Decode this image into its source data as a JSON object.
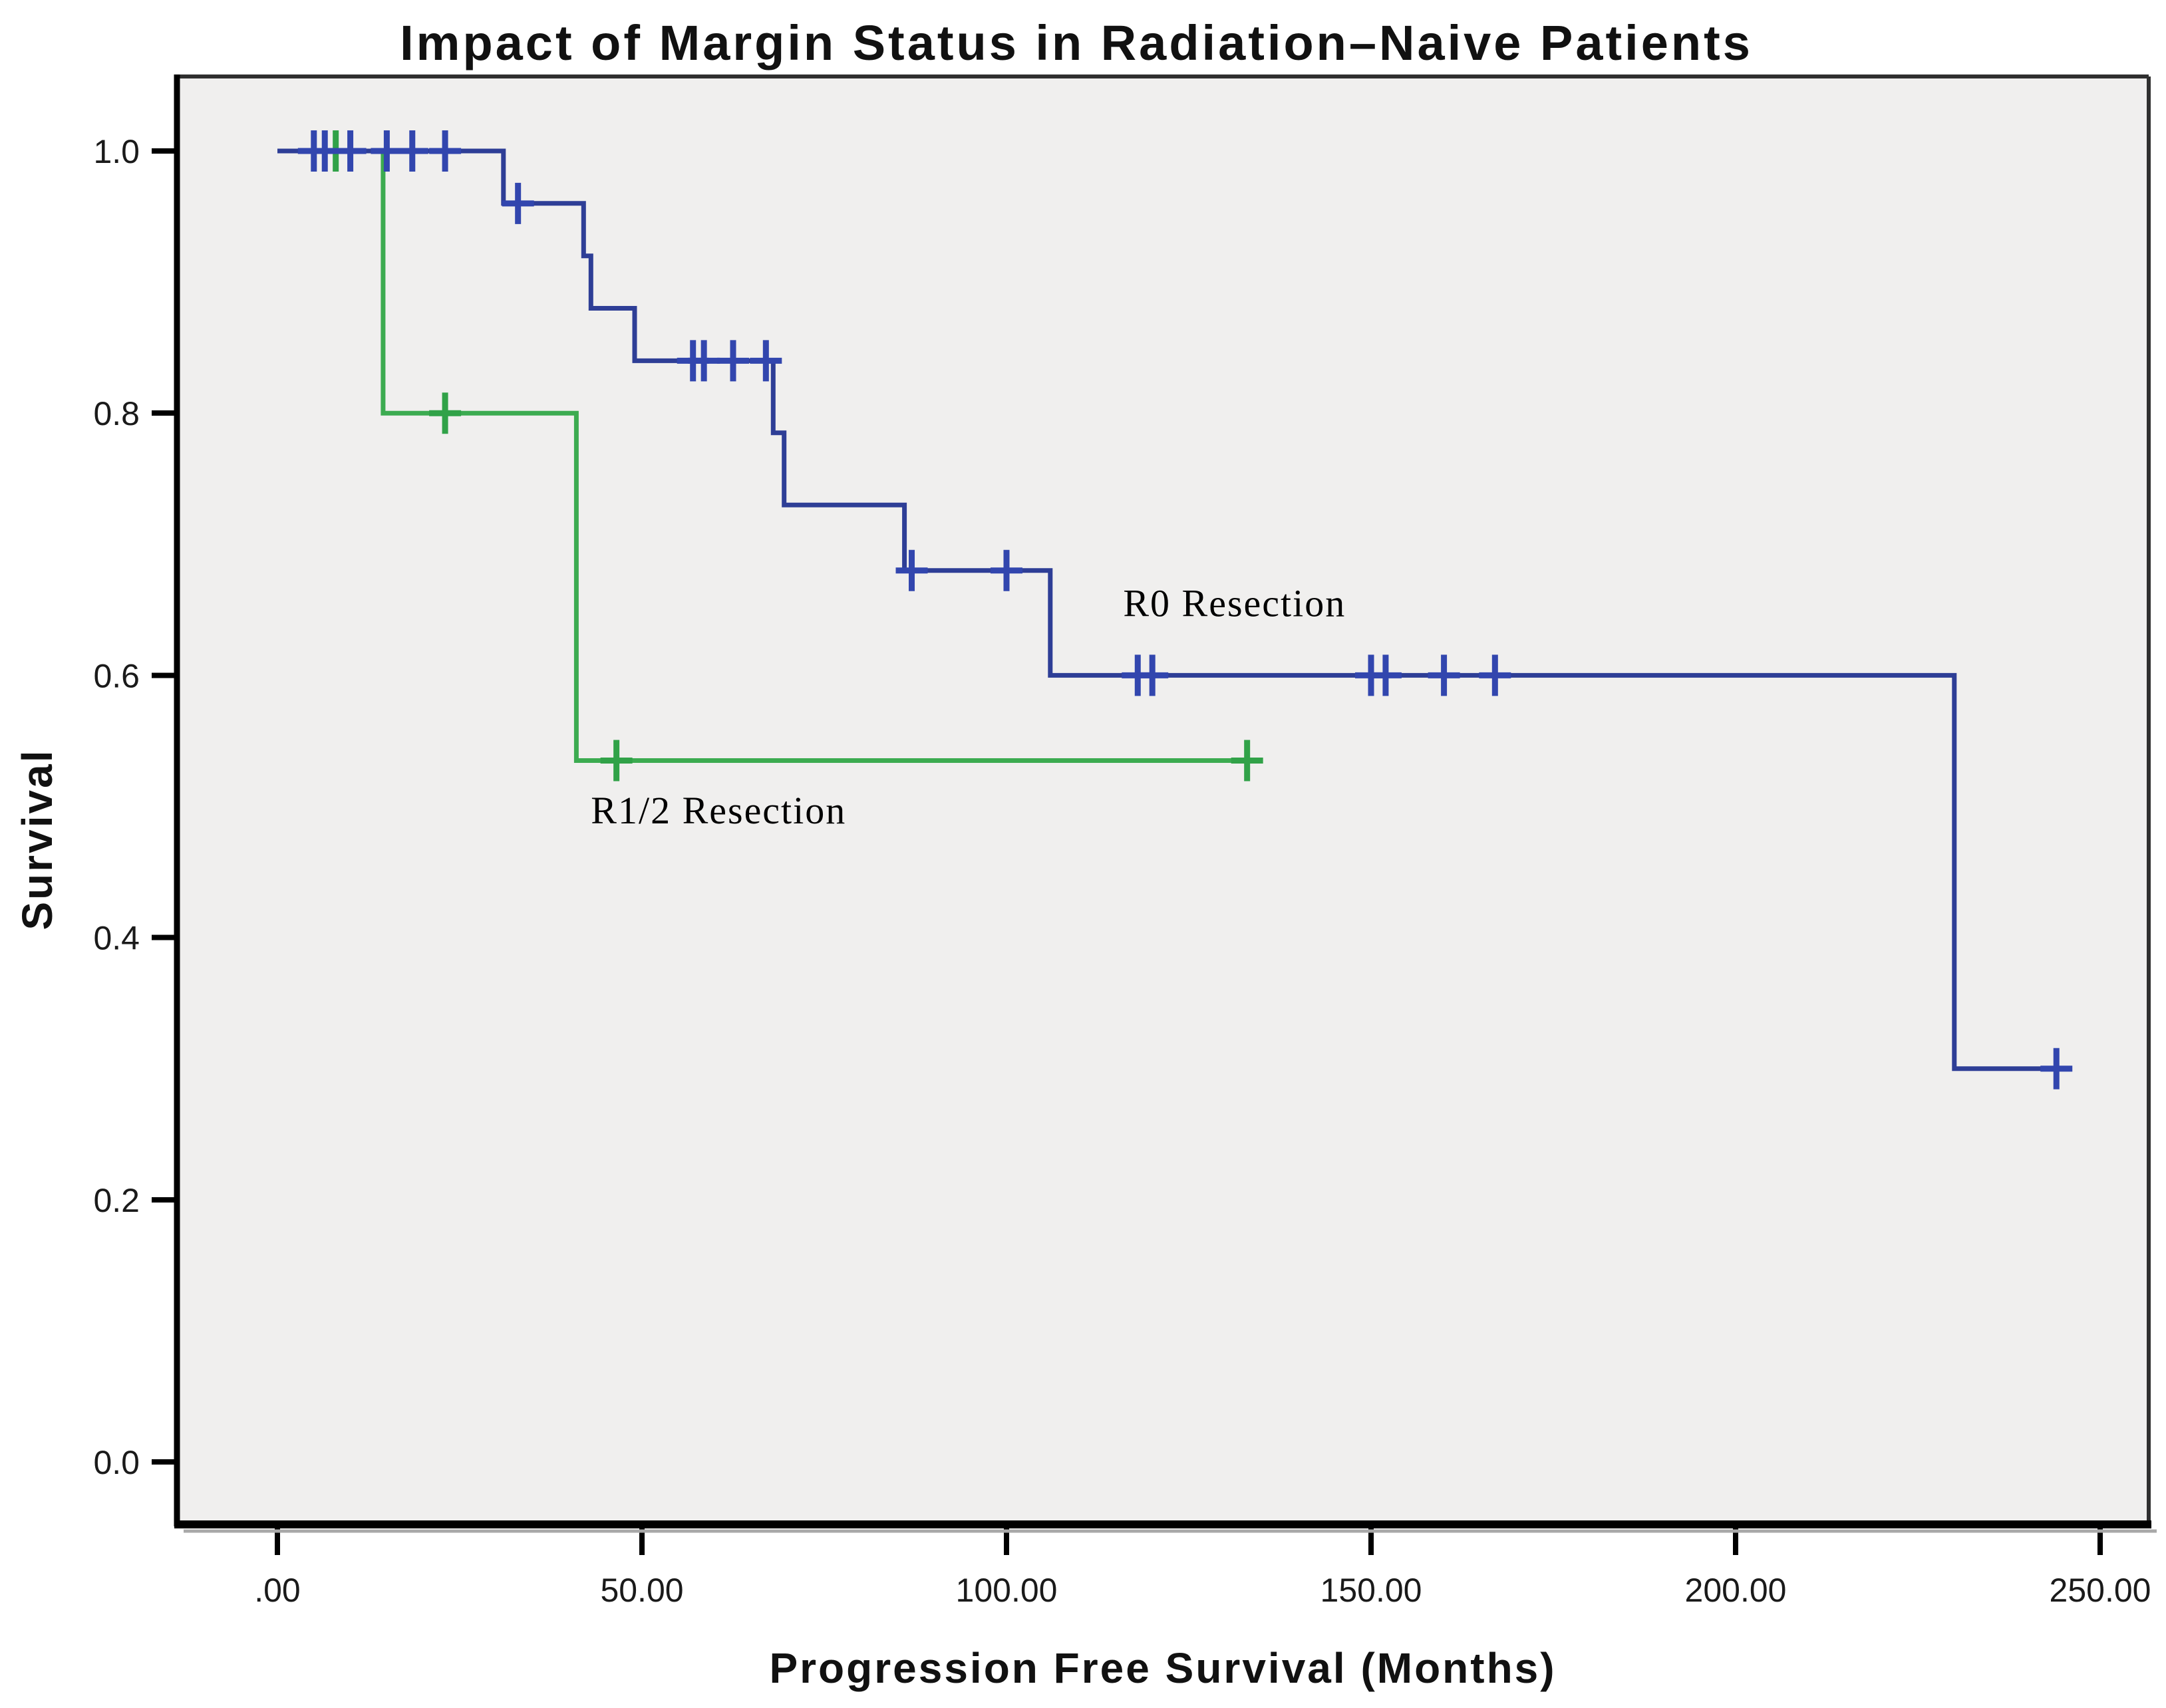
{
  "title": "Impact of Margin Status in Radiation–Naive Patients",
  "chart_data": {
    "type": "line",
    "subtype": "kaplan_meier_step_survival",
    "title": "Impact of Margin Status in Radiation–Naive Patients",
    "xlabel": "Progression Free Survival (Months)",
    "ylabel": "Survival",
    "x_ticks": {
      "values": [
        0,
        50,
        100,
        150,
        200,
        250
      ],
      "labels": [
        ".00",
        "50.00",
        "100.00",
        "150.00",
        "200.00",
        "250.00"
      ]
    },
    "y_ticks": {
      "values": [
        1.0,
        0.8,
        0.6,
        0.4,
        0.2,
        0.0
      ],
      "labels": [
        "1.0",
        "0.8",
        "0.6",
        "0.4",
        "0.2",
        "0.0"
      ]
    },
    "xlim": [
      -13.8,
      256.7
    ],
    "ylim": [
      -0.048,
      1.057
    ],
    "grid": false,
    "legend": "inline-curve-labels",
    "plot_background": "#f0efee",
    "frame_color": "#1a1a1a",
    "series": [
      {
        "name": "R1/2 Resection",
        "color": "#3cab50",
        "censor_color": "#31a248",
        "steps": [
          [
            0,
            1.0
          ],
          [
            14.5,
            1.0
          ],
          [
            14.5,
            0.8
          ],
          [
            41,
            0.8
          ],
          [
            41,
            0.535
          ],
          [
            135,
            0.535
          ]
        ],
        "censors": [
          [
            8,
            1.0
          ],
          [
            23,
            0.8
          ],
          [
            46.5,
            0.535
          ],
          [
            133,
            0.535
          ]
        ],
        "label": {
          "text": "R1/2 Resection",
          "x": 43,
          "y": 0.487
        }
      },
      {
        "name": "R0 Resection",
        "color": "#2e3e96",
        "censor_color": "#3246ae",
        "steps": [
          [
            0,
            1.0
          ],
          [
            31,
            1.0
          ],
          [
            31,
            0.96
          ],
          [
            42,
            0.96
          ],
          [
            42,
            0.92
          ],
          [
            43,
            0.92
          ],
          [
            43,
            0.88
          ],
          [
            49,
            0.88
          ],
          [
            49,
            0.84
          ],
          [
            68,
            0.84
          ],
          [
            68,
            0.785
          ],
          [
            69.5,
            0.785
          ],
          [
            69.5,
            0.73
          ],
          [
            86,
            0.73
          ],
          [
            86,
            0.68
          ],
          [
            106,
            0.68
          ],
          [
            106,
            0.6
          ],
          [
            230,
            0.6
          ],
          [
            230,
            0.3
          ],
          [
            246,
            0.3
          ]
        ],
        "censors": [
          [
            5,
            1.0
          ],
          [
            6.5,
            1.0
          ],
          [
            10,
            1.0
          ],
          [
            15,
            1.0
          ],
          [
            18.5,
            1.0
          ],
          [
            23,
            1.0
          ],
          [
            33,
            0.96
          ],
          [
            57,
            0.84
          ],
          [
            58.5,
            0.84
          ],
          [
            62.5,
            0.84
          ],
          [
            67,
            0.84
          ],
          [
            87,
            0.68
          ],
          [
            100,
            0.68
          ],
          [
            118,
            0.6
          ],
          [
            120,
            0.6
          ],
          [
            150,
            0.6
          ],
          [
            152,
            0.6
          ],
          [
            160,
            0.6
          ],
          [
            167,
            0.6
          ],
          [
            244,
            0.3
          ]
        ],
        "label": {
          "text": "R0 Resection",
          "x": 116,
          "y": 0.645
        }
      }
    ]
  }
}
